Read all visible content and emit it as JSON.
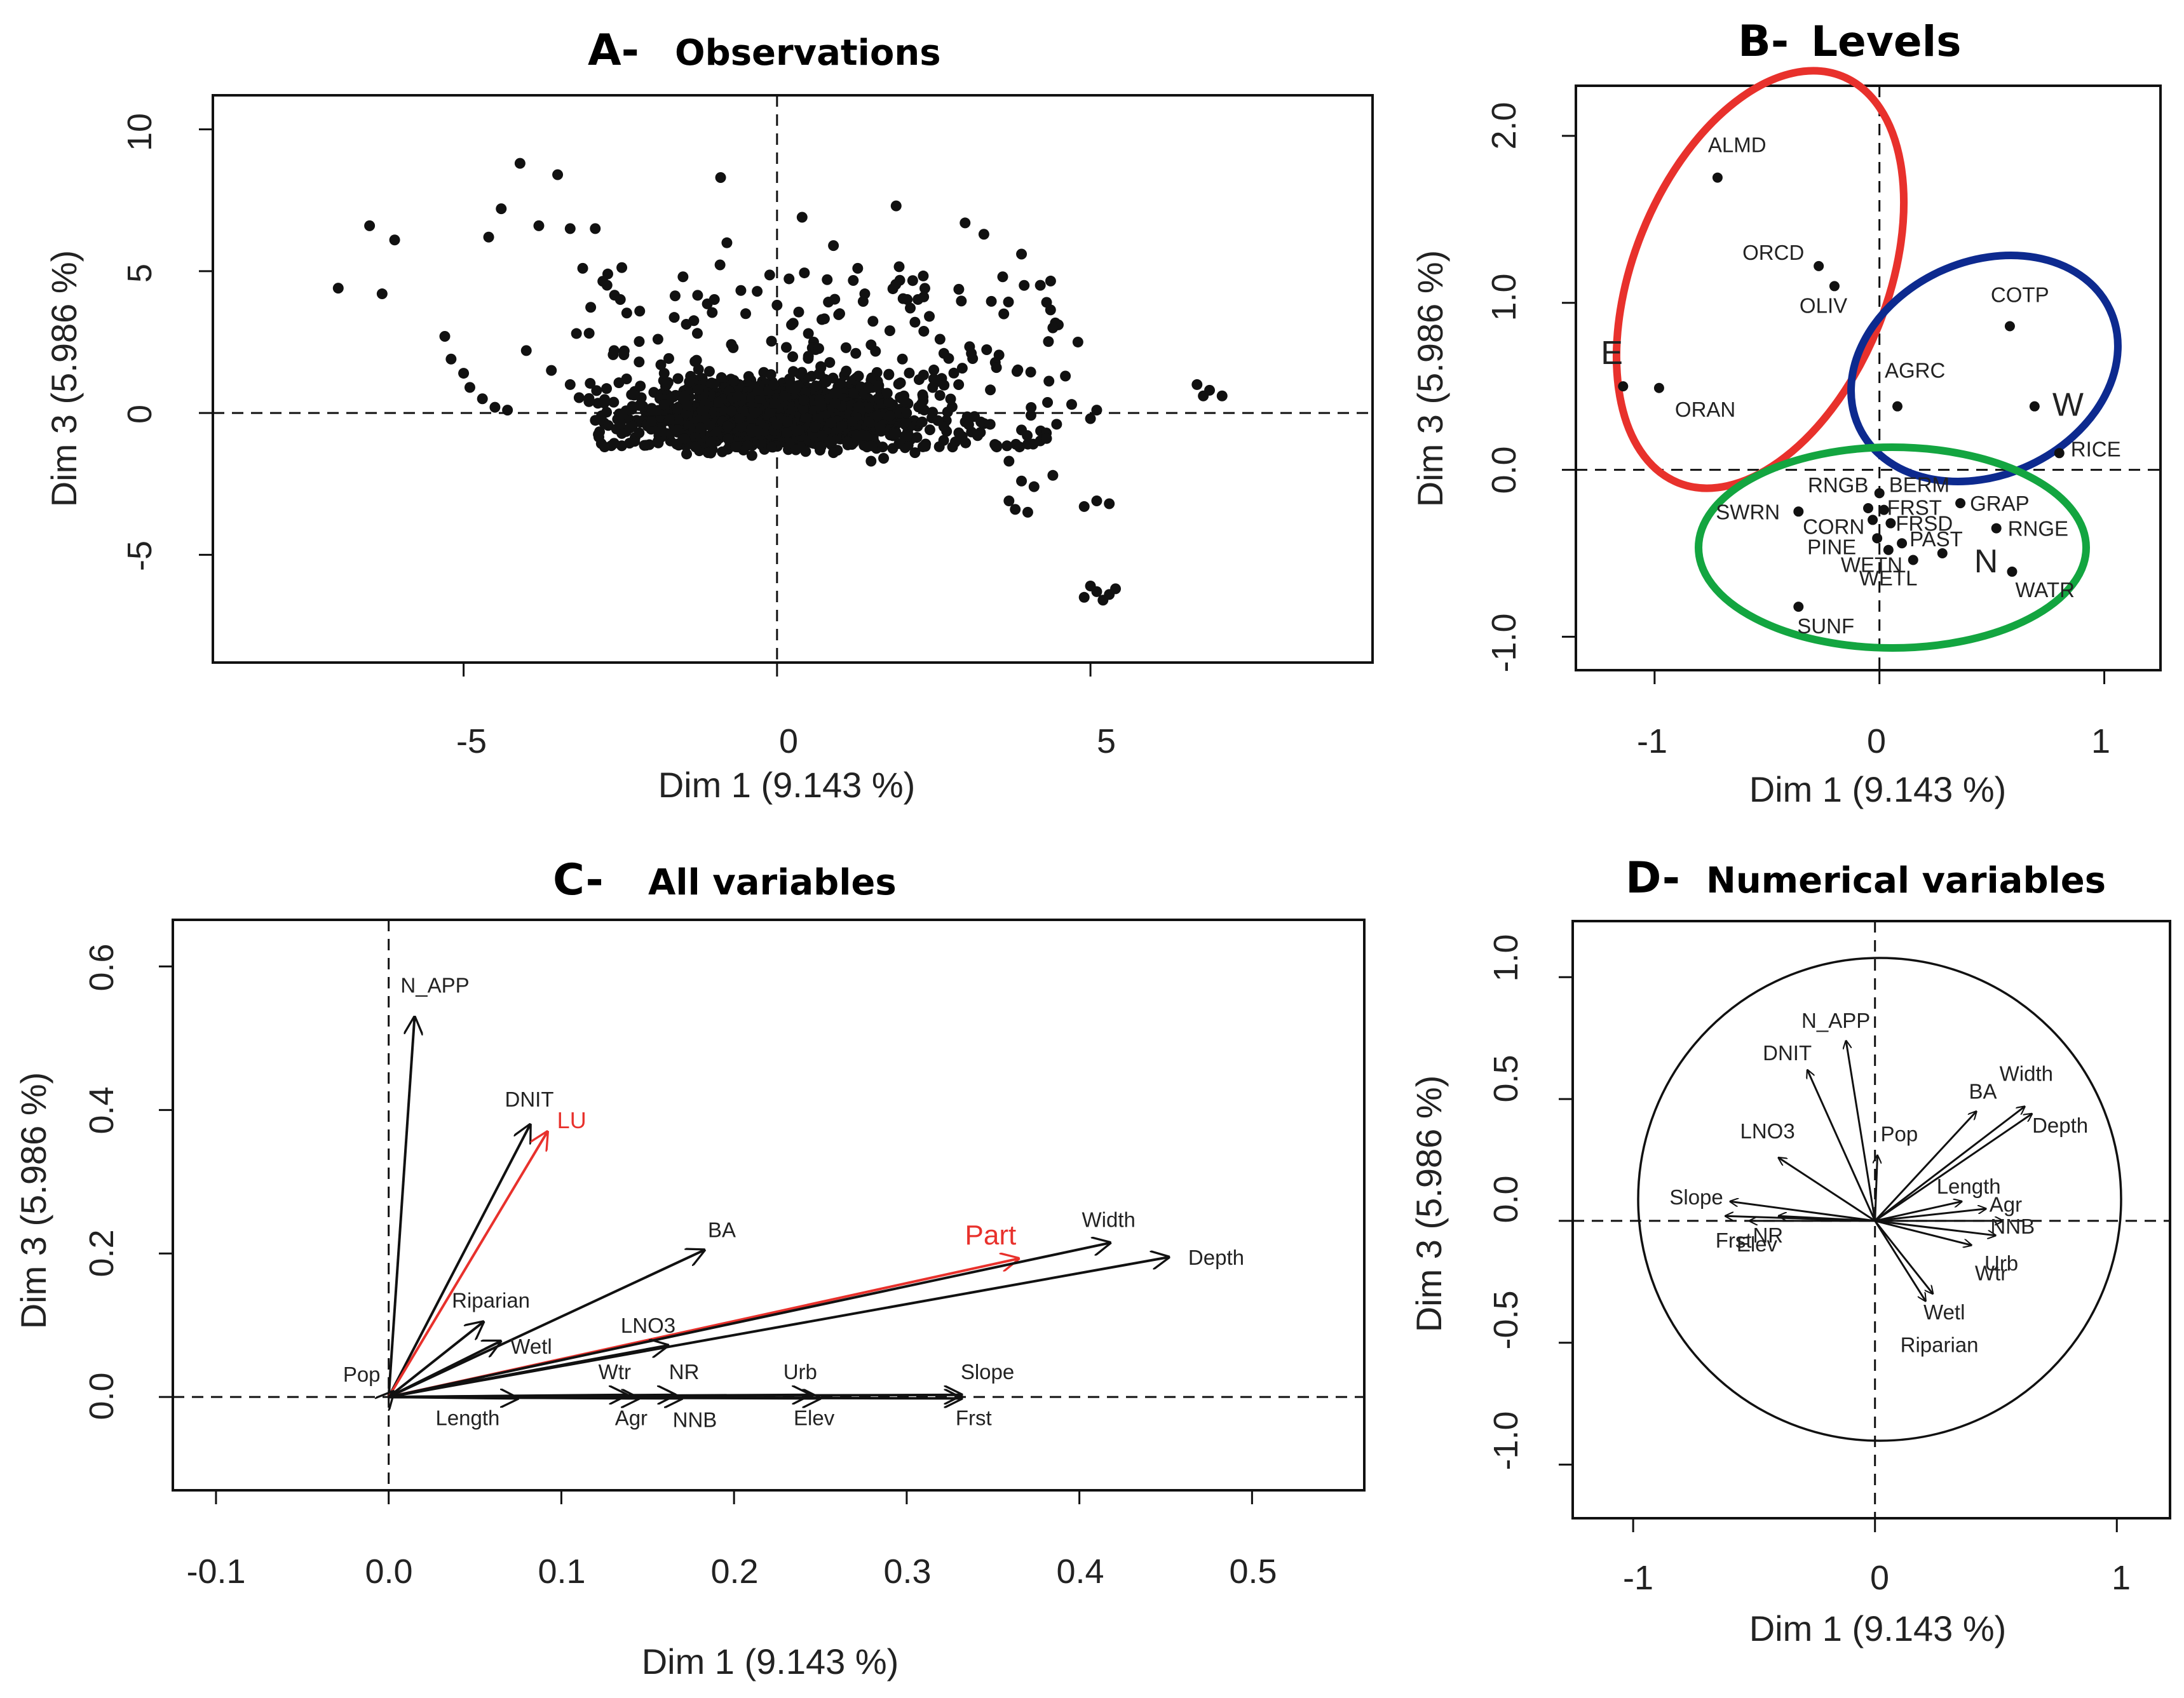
{
  "figure": {
    "panels": [
      {
        "letter": "A-",
        "title": "Observations"
      },
      {
        "letter": "B-",
        "title": "Levels"
      },
      {
        "letter": "C-",
        "title": "All variables"
      },
      {
        "letter": "D-",
        "title": "Numerical variables"
      }
    ]
  },
  "colors": {
    "red": "#e8312c",
    "blue": "#0d2a8f",
    "green": "#13a540",
    "black": "#111111"
  },
  "chart_data": [
    {
      "panel": "A",
      "type": "scatter",
      "title": "Observations",
      "xlabel": "Dim 1 (9.143 %)",
      "ylabel": "Dim 3 (5.986 %)",
      "xlim": [
        -9,
        9.5
      ],
      "ylim": [
        -8.8,
        11.2
      ],
      "xticks": [
        "-5",
        "0",
        "5"
      ],
      "yticks": [
        "-5",
        "0",
        "5",
        "10"
      ],
      "points": [
        [
          -7,
          4.4
        ],
        [
          -6.5,
          6.6
        ],
        [
          -6.3,
          4.2
        ],
        [
          -6.1,
          6.1
        ],
        [
          -5.3,
          2.7
        ],
        [
          -5.2,
          1.9
        ],
        [
          -5,
          1.4
        ],
        [
          -4.9,
          0.9
        ],
        [
          -4.7,
          0.5
        ],
        [
          -4.5,
          0.2
        ],
        [
          -4.3,
          0.1
        ],
        [
          -4.6,
          6.2
        ],
        [
          -4.4,
          7.2
        ],
        [
          -4.1,
          8.8
        ],
        [
          -3.8,
          6.6
        ],
        [
          -3.5,
          8.4
        ],
        [
          -3.3,
          6.5
        ],
        [
          -3.1,
          5.1
        ],
        [
          -2.9,
          6.5
        ],
        [
          -2.7,
          4.9
        ],
        [
          -2.5,
          4
        ],
        [
          -4,
          2.2
        ],
        [
          -3.6,
          1.5
        ],
        [
          -3.3,
          1
        ],
        [
          -3,
          0.4
        ],
        [
          -2.8,
          -0.1
        ],
        [
          -2.5,
          -0.4
        ],
        [
          -2.2,
          -0.7
        ],
        [
          -1.9,
          -1
        ],
        [
          -1.6,
          -1.1
        ],
        [
          -1.3,
          -1.2
        ],
        [
          -3.2,
          2.8
        ],
        [
          -2.6,
          2.2
        ],
        [
          -2.2,
          1.8
        ],
        [
          -1.8,
          1.4
        ],
        [
          -1.4,
          1.1
        ],
        [
          -1.5,
          4.8
        ],
        [
          -1,
          4
        ],
        [
          -0.8,
          6
        ],
        [
          -0.5,
          3.5
        ],
        [
          0,
          3.8
        ],
        [
          0.5,
          2.8
        ],
        [
          1,
          3.5
        ],
        [
          1.5,
          2.4
        ],
        [
          2,
          1.9
        ],
        [
          2.5,
          1.2
        ],
        [
          -0.9,
          8.3
        ],
        [
          0.4,
          6.9
        ],
        [
          0.8,
          4.7
        ],
        [
          0.9,
          5.9
        ],
        [
          1.4,
          4.2
        ],
        [
          1.9,
          7.3
        ],
        [
          2.2,
          3.2
        ],
        [
          2.6,
          2.6
        ],
        [
          3,
          6.7
        ],
        [
          3.3,
          6.3
        ],
        [
          3.6,
          4.8
        ],
        [
          3.9,
          5.6
        ],
        [
          4.2,
          4.5
        ],
        [
          4.3,
          3.9
        ],
        [
          4.4,
          3
        ],
        [
          4.8,
          2.5
        ],
        [
          4.6,
          1.3
        ],
        [
          4.7,
          0.3
        ],
        [
          5.1,
          0.1
        ],
        [
          5,
          -0.2
        ],
        [
          3.4,
          -0.4
        ],
        [
          3.2,
          -0.8
        ],
        [
          3.9,
          -0.6
        ],
        [
          4,
          -1.1
        ],
        [
          4.3,
          -0.9
        ],
        [
          3.7,
          -1.7
        ],
        [
          3.9,
          -2.4
        ],
        [
          4.1,
          -2.6
        ],
        [
          4.4,
          -2.2
        ],
        [
          3.7,
          -3.1
        ],
        [
          3.8,
          -3.4
        ],
        [
          4,
          -3.5
        ],
        [
          4.9,
          -3.3
        ],
        [
          5.1,
          -3.1
        ],
        [
          5.3,
          -3.2
        ],
        [
          5,
          -6.1
        ],
        [
          5.1,
          -6.3
        ],
        [
          5.3,
          -6.4
        ],
        [
          5.4,
          -6.2
        ],
        [
          4.9,
          -6.5
        ],
        [
          5.2,
          -6.6
        ],
        [
          6.7,
          1
        ],
        [
          6.9,
          0.8
        ],
        [
          7.1,
          0.6
        ],
        [
          6.8,
          0.6
        ],
        [
          -1.8,
          0.3
        ],
        [
          -1.2,
          0.1
        ],
        [
          -0.6,
          -0.2
        ],
        [
          0,
          -0.4
        ],
        [
          0.6,
          -0.5
        ],
        [
          1.2,
          -0.3
        ],
        [
          1.8,
          -0.1
        ],
        [
          2.3,
          0.3
        ],
        [
          -0.3,
          0.8
        ],
        [
          0.2,
          1.2
        ],
        [
          0.7,
          1.6
        ],
        [
          1.3,
          1.3
        ],
        [
          2.2,
          -1.4
        ],
        [
          1.7,
          -1.6
        ],
        [
          2.8,
          -1.2
        ],
        [
          2.9,
          -0.7
        ],
        [
          -2,
          -0.3
        ],
        [
          -1.1,
          -1.4
        ],
        [
          -0.4,
          -1.5
        ],
        [
          0.3,
          -1.3
        ],
        [
          0.9,
          -1.4
        ],
        [
          1.5,
          -1.7
        ],
        [
          -2.4,
          1.2
        ],
        [
          -1.9,
          2.6
        ],
        [
          -0.7,
          2.3
        ],
        [
          0.5,
          2
        ],
        [
          1.1,
          2.3
        ],
        [
          1.8,
          2.9
        ],
        [
          3.1,
          2.1
        ],
        [
          3.5,
          1.6
        ]
      ]
    },
    {
      "panel": "B",
      "type": "scatter",
      "title": "Levels",
      "xlabel": "Dim 1 (9.143 %)",
      "ylabel": "Dim 3 (5.986 %)",
      "xlim": [
        -1.35,
        1.25
      ],
      "ylim": [
        -1.2,
        2.3
      ],
      "xticks": [
        "-1",
        "0",
        "1"
      ],
      "yticks": [
        "-1.0",
        "0.0",
        "1.0",
        "2.0"
      ],
      "points": [
        {
          "label": "ALMD",
          "x": -0.72,
          "y": 1.75
        },
        {
          "label": "ORCD",
          "x": -0.27,
          "y": 1.22
        },
        {
          "label": "OLIV",
          "x": -0.2,
          "y": 1.1
        },
        {
          "label": "E",
          "x": -1.14,
          "y": 0.5
        },
        {
          "label": "ORAN",
          "x": -0.98,
          "y": 0.49
        },
        {
          "label": "AGRC",
          "x": 0.08,
          "y": 0.38
        },
        {
          "label": "COTP",
          "x": 0.58,
          "y": 0.86
        },
        {
          "label": "W",
          "x": 0.69,
          "y": 0.38
        },
        {
          "label": "RICE",
          "x": 0.8,
          "y": 0.1
        },
        {
          "label": "RNGB",
          "x": -0.05,
          "y": -0.23
        },
        {
          "label": "BERM",
          "x": 0.0,
          "y": -0.14
        },
        {
          "label": "FRST",
          "x": 0.02,
          "y": -0.24
        },
        {
          "label": "SWRN",
          "x": -0.36,
          "y": -0.25
        },
        {
          "label": "CORN",
          "x": -0.03,
          "y": -0.3
        },
        {
          "label": "FRSD",
          "x": 0.05,
          "y": -0.32
        },
        {
          "label": "GRAP",
          "x": 0.36,
          "y": -0.2
        },
        {
          "label": "PINE",
          "x": -0.01,
          "y": -0.41
        },
        {
          "label": "PAST",
          "x": 0.1,
          "y": -0.44
        },
        {
          "label": "RNGE",
          "x": 0.52,
          "y": -0.35
        },
        {
          "label": "WETN",
          "x": 0.04,
          "y": -0.48
        },
        {
          "label": "N",
          "x": 0.28,
          "y": -0.5
        },
        {
          "label": "WETL",
          "x": 0.15,
          "y": -0.54
        },
        {
          "label": "WATR",
          "x": 0.59,
          "y": -0.61
        },
        {
          "label": "SUNF",
          "x": -0.36,
          "y": -0.82
        }
      ],
      "groups": [
        {
          "name": "E",
          "color": "#e8312c"
        },
        {
          "name": "W",
          "color": "#0d2a8f"
        },
        {
          "name": "N",
          "color": "#13a540"
        }
      ]
    },
    {
      "panel": "C",
      "type": "biplot",
      "title": "All variables",
      "xlabel": "Dim 1 (9.143 %)",
      "ylabel": "Dim 3 (5.986 %)",
      "xlim": [
        -0.125,
        0.565
      ],
      "ylim": [
        -0.13,
        0.665
      ],
      "xticks": [
        "-0.1",
        "0.0",
        "0.1",
        "0.2",
        "0.3",
        "0.4",
        "0.5"
      ],
      "yticks": [
        "0.0",
        "0.2",
        "0.4",
        "0.6"
      ],
      "arrows": [
        {
          "label": "N_APP",
          "x": 0.015,
          "y": 0.53,
          "color": "#111111"
        },
        {
          "label": "DNIT",
          "x": 0.082,
          "y": 0.38,
          "color": "#111111"
        },
        {
          "label": "LU",
          "x": 0.092,
          "y": 0.37,
          "color": "#e8312c"
        },
        {
          "label": "BA",
          "x": 0.183,
          "y": 0.205,
          "color": "#111111"
        },
        {
          "label": "Part",
          "x": 0.365,
          "y": 0.193,
          "color": "#e8312c"
        },
        {
          "label": "Width",
          "x": 0.418,
          "y": 0.215,
          "color": "#111111"
        },
        {
          "label": "Depth",
          "x": 0.452,
          "y": 0.195,
          "color": "#111111"
        },
        {
          "label": "Riparian",
          "x": 0.055,
          "y": 0.105,
          "color": "#111111"
        },
        {
          "label": "LNO3",
          "x": 0.162,
          "y": 0.072,
          "color": "#111111"
        },
        {
          "label": "Wetl",
          "x": 0.065,
          "y": 0.078,
          "color": "#111111"
        },
        {
          "label": "Pop",
          "x": 0.003,
          "y": 0.008,
          "color": "#111111"
        },
        {
          "label": "Length",
          "x": 0.075,
          "y": -0.002,
          "color": "#111111"
        },
        {
          "label": "Wtr",
          "x": 0.138,
          "y": 0.003,
          "color": "#111111"
        },
        {
          "label": "NR",
          "x": 0.166,
          "y": 0.003,
          "color": "#111111"
        },
        {
          "label": "Agr",
          "x": 0.145,
          "y": -0.002,
          "color": "#111111"
        },
        {
          "label": "NNB",
          "x": 0.17,
          "y": -0.002,
          "color": "#111111"
        },
        {
          "label": "Urb",
          "x": 0.244,
          "y": 0.003,
          "color": "#111111"
        },
        {
          "label": "Elev",
          "x": 0.25,
          "y": -0.002,
          "color": "#111111"
        },
        {
          "label": "Slope",
          "x": 0.332,
          "y": 0.003,
          "color": "#111111"
        },
        {
          "label": "Frst",
          "x": 0.332,
          "y": -0.002,
          "color": "#111111"
        }
      ]
    },
    {
      "panel": "D",
      "type": "correlation-circle",
      "title": "Numerical variables",
      "xlabel": "Dim 1 (9.143 %)",
      "ylabel": "Dim 3 (5.986 %)",
      "xlim": [
        -1.25,
        1.22
      ],
      "ylim": [
        -1.22,
        1.23
      ],
      "xticks": [
        "-1",
        "0",
        "1"
      ],
      "yticks": [
        "-1.0",
        "-0.5",
        "0.0",
        "0.5",
        "1.0"
      ],
      "arrows": [
        {
          "label": "N_APP",
          "x": -0.12,
          "y": 0.74
        },
        {
          "label": "DNIT",
          "x": -0.28,
          "y": 0.62
        },
        {
          "label": "LNO3",
          "x": -0.4,
          "y": 0.26
        },
        {
          "label": "Pop",
          "x": 0.01,
          "y": 0.27
        },
        {
          "label": "BA",
          "x": 0.42,
          "y": 0.45
        },
        {
          "label": "Width",
          "x": 0.62,
          "y": 0.47
        },
        {
          "label": "Depth",
          "x": 0.65,
          "y": 0.44
        },
        {
          "label": "Length",
          "x": 0.36,
          "y": 0.08
        },
        {
          "label": "Agr",
          "x": 0.46,
          "y": 0.05
        },
        {
          "label": "NNB",
          "x": 0.53,
          "y": 0.0
        },
        {
          "label": "Urb",
          "x": 0.5,
          "y": -0.06
        },
        {
          "label": "Wtr",
          "x": 0.4,
          "y": -0.1
        },
        {
          "label": "Wetl",
          "x": 0.24,
          "y": -0.3
        },
        {
          "label": "Riparian",
          "x": 0.21,
          "y": -0.33
        },
        {
          "label": "Slope",
          "x": -0.6,
          "y": 0.08
        },
        {
          "label": "Frst",
          "x": -0.62,
          "y": 0.02
        },
        {
          "label": "Elev",
          "x": -0.52,
          "y": 0.0
        },
        {
          "label": "NR",
          "x": -0.4,
          "y": 0.02
        }
      ]
    }
  ]
}
